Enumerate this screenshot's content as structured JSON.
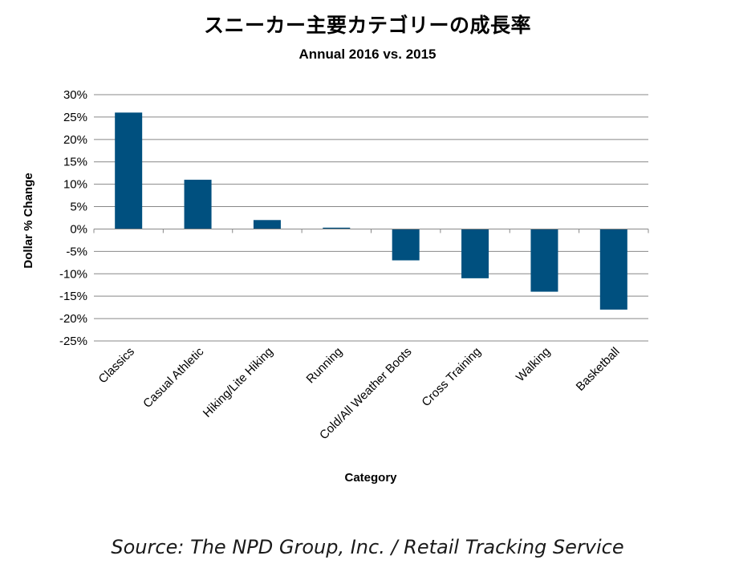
{
  "chart_data": {
    "type": "bar",
    "title": "スニーカー主要カテゴリーの成長率",
    "subtitle": "Annual 2016 vs. 2015",
    "xlabel": "Category",
    "ylabel": "Dollar % Change",
    "categories": [
      "Classics",
      "Casual Athletic",
      "Hiking/Lite Hiking",
      "Running",
      "Cold/All Weather Boots",
      "Cross Training",
      "Walking",
      "Basketball"
    ],
    "values": [
      26,
      11,
      2,
      0.3,
      -7,
      -11,
      -14,
      -18
    ],
    "ylim": [
      -25,
      30
    ],
    "yticks": [
      30,
      25,
      20,
      15,
      10,
      5,
      0,
      -5,
      -10,
      -15,
      -20,
      -25
    ],
    "ytick_labels": [
      "30%",
      "25%",
      "20%",
      "15%",
      "10%",
      "5%",
      "0%",
      "-5%",
      "-10%",
      "-15%",
      "-20%",
      "-25%"
    ],
    "grid": true,
    "bar_color": "#00507f",
    "grid_color": "#888888"
  },
  "source": "Source: The NPD Group, Inc. / Retail Tracking Service"
}
